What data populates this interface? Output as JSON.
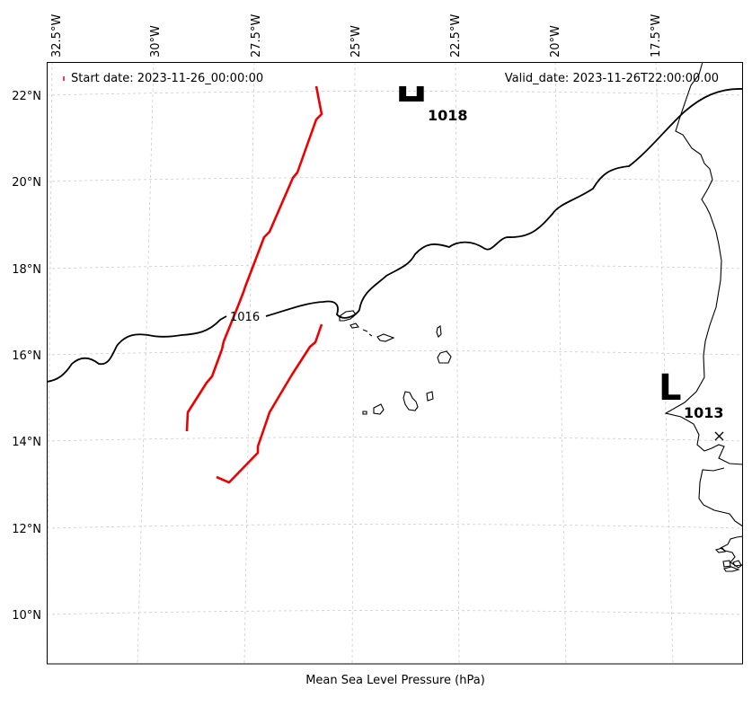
{
  "map": {
    "legend": {
      "start_label": "Start date: 2023-11-26_00:00:00",
      "valid_label": "Valid_date: 2023-11-26T22:00:00.00"
    },
    "lon_ticks": [
      "32.5°W",
      "30°W",
      "27.5°W",
      "25°W",
      "22.5°W",
      "20°W",
      "17.5°W"
    ],
    "lat_ticks": [
      "22°N",
      "20°N",
      "18°N",
      "16°N",
      "14°N",
      "12°N",
      "10°N"
    ],
    "xlabel": "Mean Sea Level Pressure (hPa)",
    "contour_label": "1016",
    "high_center": {
      "letter": "H",
      "value": "1018"
    },
    "low_center": {
      "letter": "L",
      "value": "1013"
    },
    "colors": {
      "contour": "#000000",
      "front": "#ee0000",
      "grid": "#cccccc",
      "coast": "#000000"
    }
  }
}
